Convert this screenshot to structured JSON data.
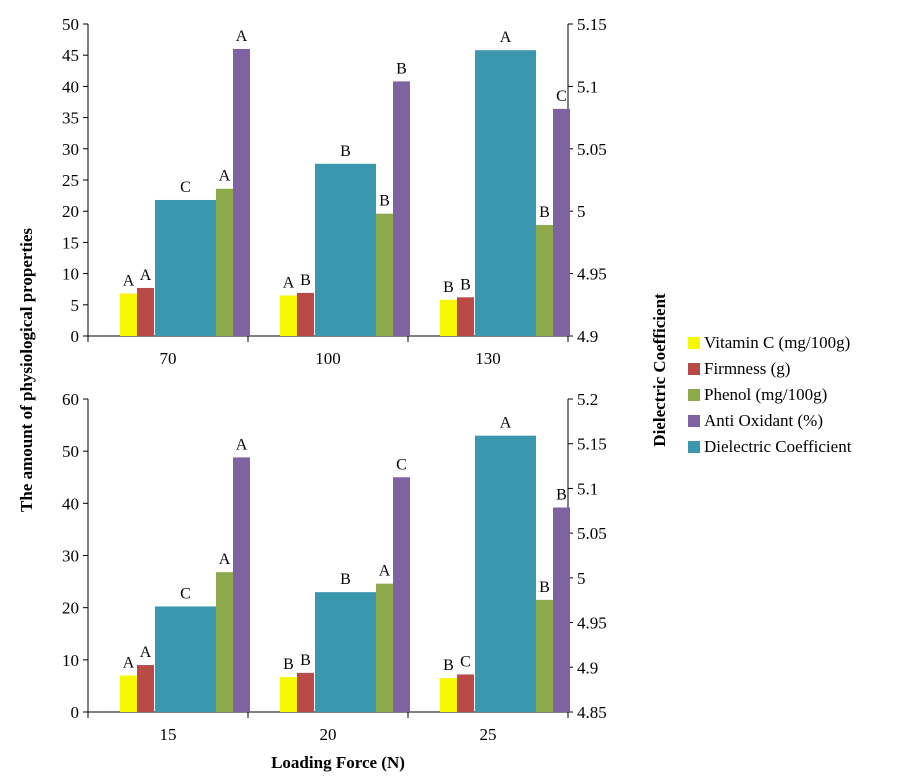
{
  "chart_data": [
    {
      "type": "bar",
      "categories": [
        "70",
        "100",
        "130"
      ],
      "left_axis": {
        "ylim": [
          0,
          50
        ],
        "ticks": [
          0,
          5,
          10,
          15,
          20,
          25,
          30,
          35,
          40,
          45,
          50
        ]
      },
      "right_axis": {
        "ylim": [
          4.9,
          5.15
        ],
        "ticks": [
          "4.9",
          "4.95",
          "5",
          "5.05",
          "5.1",
          "5.15"
        ]
      },
      "series": [
        {
          "name": "Vitamin C (mg/100g)",
          "axis": "left",
          "color": "#f7f700",
          "values": [
            6.8,
            6.5,
            5.8
          ],
          "labels": [
            "A",
            "A",
            "B"
          ]
        },
        {
          "name": "Firmness (g)",
          "axis": "left",
          "color": "#b94a48",
          "values": [
            7.7,
            6.9,
            6.2
          ],
          "labels": [
            "A",
            "B",
            "B"
          ]
        },
        {
          "name": "Dielectric Coefficient",
          "axis": "right",
          "color": "#3b97ad",
          "values": [
            5.009,
            5.038,
            5.129
          ],
          "labels": [
            "C",
            "B",
            "A"
          ]
        },
        {
          "name": "Phenol (mg/100g)",
          "axis": "left",
          "color": "#8ea94a",
          "values": [
            23.6,
            19.6,
            17.8
          ],
          "labels": [
            "A",
            "B",
            "B"
          ]
        },
        {
          "name": "Anti Oxidant (%)",
          "axis": "left",
          "color": "#7e62a1",
          "values": [
            46.0,
            40.8,
            36.4
          ],
          "labels": [
            "A",
            "B",
            "C"
          ]
        }
      ]
    },
    {
      "type": "bar",
      "categories": [
        "15",
        "20",
        "25"
      ],
      "left_axis": {
        "ylim": [
          0,
          60
        ],
        "ticks": [
          0,
          10,
          20,
          30,
          40,
          50,
          60
        ]
      },
      "right_axis": {
        "ylim": [
          4.85,
          5.2
        ],
        "ticks": [
          "4.85",
          "4.9",
          "4.95",
          "5",
          "5.05",
          "5.1",
          "5.15",
          "5.2"
        ]
      },
      "series": [
        {
          "name": "Vitamin C (mg/100g)",
          "axis": "left",
          "color": "#f7f700",
          "values": [
            7.0,
            6.7,
            6.5
          ],
          "labels": [
            "A",
            "B",
            "B"
          ]
        },
        {
          "name": "Firmness (g)",
          "axis": "left",
          "color": "#b94a48",
          "values": [
            9.0,
            7.5,
            7.2
          ],
          "labels": [
            "A",
            "B",
            "C"
          ]
        },
        {
          "name": "Dielectric Coefficient",
          "axis": "right",
          "color": "#3b97ad",
          "values": [
            4.968,
            4.984,
            5.159
          ],
          "labels": [
            "C",
            "B",
            "A"
          ]
        },
        {
          "name": "Phenol (mg/100g)",
          "axis": "left",
          "color": "#8ea94a",
          "values": [
            26.8,
            24.6,
            21.5
          ],
          "labels": [
            "A",
            "A",
            "B"
          ]
        },
        {
          "name": "Anti Oxidant (%)",
          "axis": "left",
          "color": "#7e62a1",
          "values": [
            48.8,
            45.0,
            39.2
          ],
          "labels": [
            "A",
            "C",
            "B"
          ]
        }
      ]
    }
  ],
  "axis_labels": {
    "left": "The amount of physiological properties",
    "right": "Dielectric Coefficient",
    "x": "Loading Force (N)"
  },
  "legend": [
    {
      "label": "Vitamin C (mg/100g)",
      "color": "#f7f700"
    },
    {
      "label": "Firmness (g)",
      "color": "#b94a48"
    },
    {
      "label": "Phenol (mg/100g)",
      "color": "#8ea94a"
    },
    {
      "label": "Anti Oxidant (%)",
      "color": "#7e62a1"
    },
    {
      "label": "Dielectric Coefficient",
      "color": "#3b97ad"
    }
  ]
}
